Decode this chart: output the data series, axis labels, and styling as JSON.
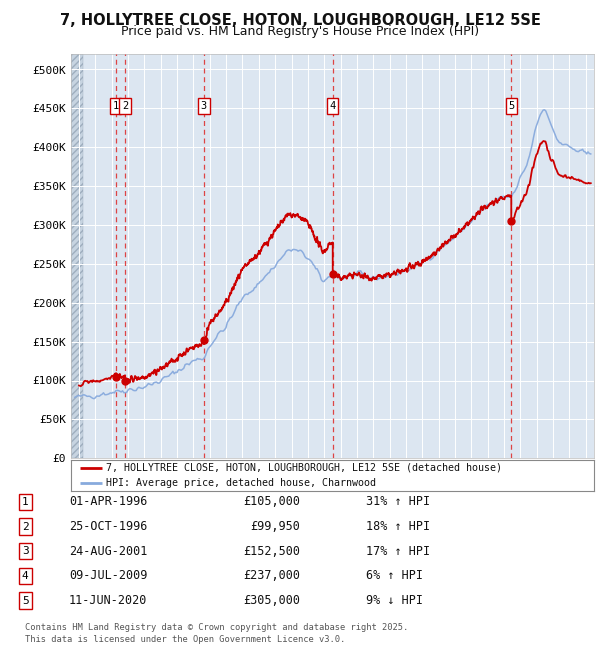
{
  "title_line1": "7, HOLLYTREE CLOSE, HOTON, LOUGHBOROUGH, LE12 5SE",
  "title_line2": "Price paid vs. HM Land Registry's House Price Index (HPI)",
  "background_color": "#ffffff",
  "plot_bg_color": "#dce6f1",
  "grid_color": "#ffffff",
  "sale_markers": [
    {
      "num": 1,
      "date_x": 1996.25,
      "price": 105000,
      "label": "01-APR-1996",
      "amount": "£105,000",
      "pct": "31% ↑ HPI"
    },
    {
      "num": 2,
      "date_x": 1996.81,
      "price": 99950,
      "label": "25-OCT-1996",
      "amount": "£99,950",
      "pct": "18% ↑ HPI"
    },
    {
      "num": 3,
      "date_x": 2001.64,
      "price": 152500,
      "label": "24-AUG-2001",
      "amount": "£152,500",
      "pct": "17% ↑ HPI"
    },
    {
      "num": 4,
      "date_x": 2009.52,
      "price": 237000,
      "label": "09-JUL-2009",
      "amount": "£237,000",
      "pct": "6% ↑ HPI"
    },
    {
      "num": 5,
      "date_x": 2020.44,
      "price": 305000,
      "label": "11-JUN-2020",
      "amount": "£305,000",
      "pct": "9% ↓ HPI"
    }
  ],
  "legend_line1": "7, HOLLYTREE CLOSE, HOTON, LOUGHBOROUGH, LE12 5SE (detached house)",
  "legend_line2": "HPI: Average price, detached house, Charnwood",
  "footer": "Contains HM Land Registry data © Crown copyright and database right 2025.\nThis data is licensed under the Open Government Licence v3.0.",
  "ylim": [
    0,
    520000
  ],
  "xlim": [
    1993.5,
    2025.5
  ],
  "yticks": [
    0,
    50000,
    100000,
    150000,
    200000,
    250000,
    300000,
    350000,
    400000,
    450000,
    500000
  ],
  "ytick_labels": [
    "£0",
    "£50K",
    "£100K",
    "£150K",
    "£200K",
    "£250K",
    "£300K",
    "£350K",
    "£400K",
    "£450K",
    "£500K"
  ],
  "sale_line_color": "#cc0000",
  "hpi_line_color": "#88aadd",
  "marker_box_color": "#cc0000",
  "dashed_color": "#dd4444",
  "dot_color": "#cc0000"
}
